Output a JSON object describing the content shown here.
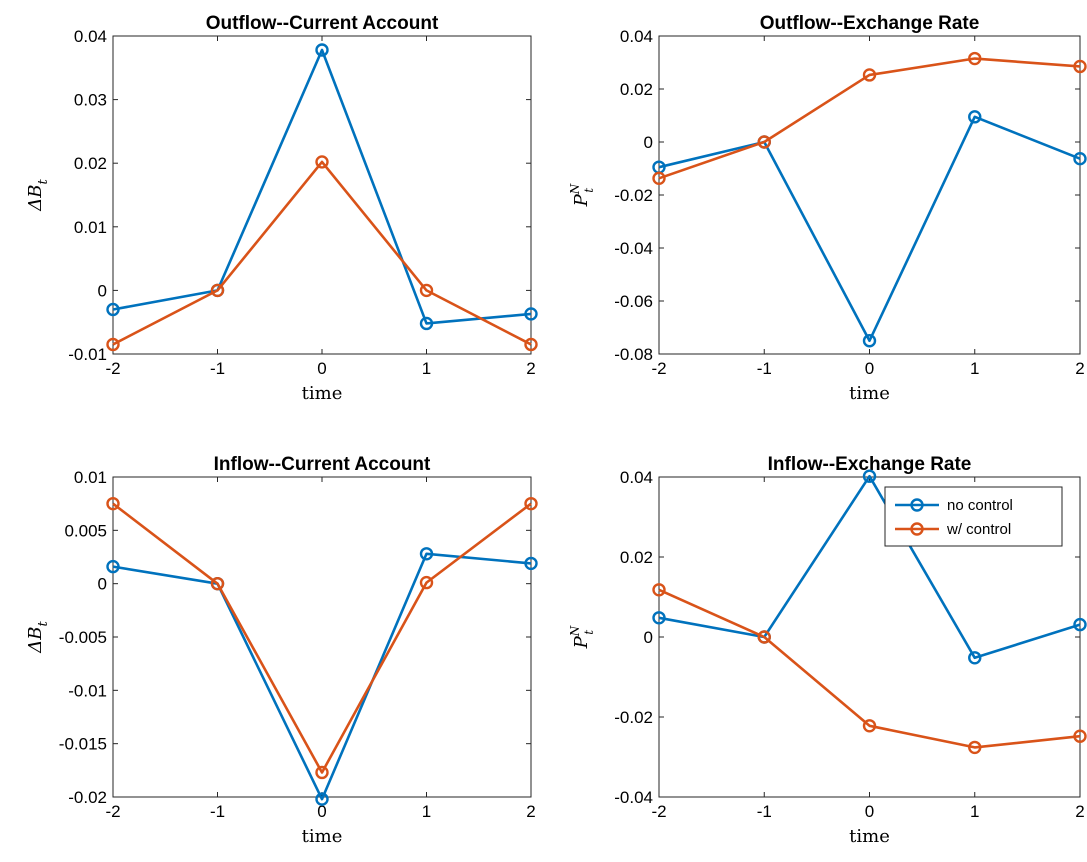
{
  "colors": {
    "no_control": "#0072BD",
    "w_control": "#D95319"
  },
  "chart_data": [
    {
      "type": "line",
      "title": "Outflow--Current Account",
      "xlabel": "time",
      "ylabel": "ΔB_t",
      "x": [
        -2,
        -1,
        0,
        1,
        2
      ],
      "xlim": [
        -2,
        2
      ],
      "ylim": [
        -0.01,
        0.04
      ],
      "xticks": [
        "-2",
        "-1",
        "0",
        "1",
        "2"
      ],
      "yticks": [
        -0.01,
        0,
        0.01,
        0.02,
        0.03,
        0.04
      ],
      "ytick_labels": [
        "-0.01",
        "0",
        "0.01",
        "0.02",
        "0.03",
        "0.04"
      ],
      "grid": false,
      "series": [
        {
          "name": "no control",
          "values": [
            -0.003,
            0.0,
            0.0378,
            -0.0052,
            -0.0037
          ]
        },
        {
          "name": "w/ control",
          "values": [
            -0.0085,
            0.0,
            0.0202,
            0.0,
            -0.0085
          ]
        }
      ]
    },
    {
      "type": "line",
      "title": "Outflow--Exchange Rate",
      "xlabel": "time",
      "ylabel": "P_t^N",
      "x": [
        -2,
        -1,
        0,
        1,
        2
      ],
      "xlim": [
        -2,
        2
      ],
      "ylim": [
        -0.08,
        0.04
      ],
      "xticks": [
        "-2",
        "-1",
        "0",
        "1",
        "2"
      ],
      "yticks": [
        -0.08,
        -0.06,
        -0.04,
        -0.02,
        0,
        0.02,
        0.04
      ],
      "ytick_labels": [
        "-0.08",
        "-0.06",
        "-0.04",
        "-0.02",
        "0",
        "0.02",
        "0.04"
      ],
      "grid": false,
      "series": [
        {
          "name": "no control",
          "values": [
            -0.0095,
            0.0,
            -0.075,
            0.0095,
            -0.0063
          ]
        },
        {
          "name": "w/ control",
          "values": [
            -0.0137,
            0.0,
            0.0253,
            0.0315,
            0.0285
          ]
        }
      ]
    },
    {
      "type": "line",
      "title": "Inflow--Current Account",
      "xlabel": "time",
      "ylabel": "ΔB_t",
      "x": [
        -2,
        -1,
        0,
        1,
        2
      ],
      "xlim": [
        -2,
        2
      ],
      "ylim": [
        -0.02,
        0.01
      ],
      "xticks": [
        "-2",
        "-1",
        "0",
        "1",
        "2"
      ],
      "yticks": [
        -0.02,
        -0.015,
        -0.01,
        -0.005,
        0,
        0.005,
        0.01
      ],
      "ytick_labels": [
        "-0.02",
        "-0.015",
        "-0.01",
        "-0.005",
        "0",
        "0.005",
        "0.01"
      ],
      "grid": false,
      "series": [
        {
          "name": "no control",
          "values": [
            0.0016,
            0.0,
            -0.0202,
            0.0028,
            0.0019
          ]
        },
        {
          "name": "w/ control",
          "values": [
            0.0075,
            0.0,
            -0.0177,
            0.0001,
            0.0075
          ]
        }
      ]
    },
    {
      "type": "line",
      "title": "Inflow--Exchange Rate",
      "xlabel": "time",
      "ylabel": "P_t^N",
      "x": [
        -2,
        -1,
        0,
        1,
        2
      ],
      "xlim": [
        -2,
        2
      ],
      "ylim": [
        -0.04,
        0.04
      ],
      "xticks": [
        "-2",
        "-1",
        "0",
        "1",
        "2"
      ],
      "yticks": [
        -0.04,
        -0.02,
        0,
        0.02,
        0.04
      ],
      "ytick_labels": [
        "-0.04",
        "-0.02",
        "0",
        "0.02",
        "0.04"
      ],
      "grid": false,
      "legend": {
        "placement": "top-right",
        "entries": [
          "no control",
          "w/ control"
        ]
      },
      "series": [
        {
          "name": "no control",
          "values": [
            0.0048,
            0.0,
            0.0402,
            -0.0052,
            0.0031
          ]
        },
        {
          "name": "w/ control",
          "values": [
            0.0118,
            0.0,
            -0.0222,
            -0.0276,
            -0.0248
          ]
        }
      ]
    }
  ]
}
